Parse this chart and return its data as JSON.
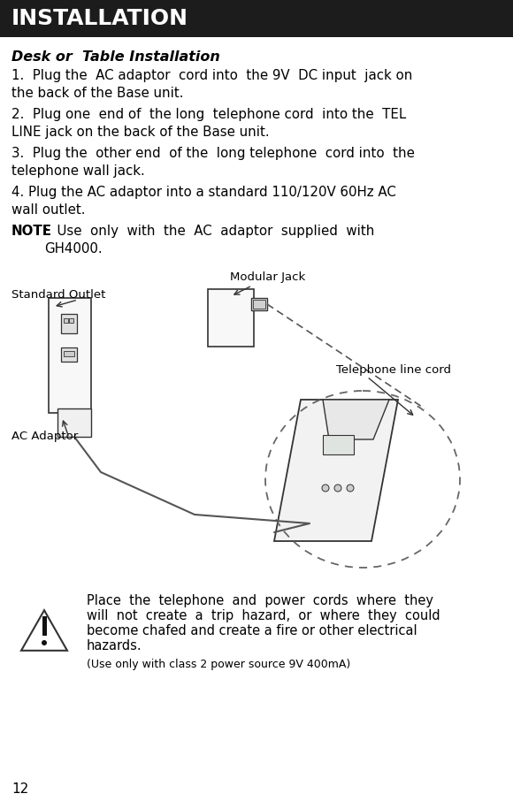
{
  "title": "INSTALLATION",
  "title_bg": "#1c1c1c",
  "title_color": "#ffffff",
  "subtitle": "Desk or  Table Installation",
  "para1": "1.  Plug the  AC adaptor  cord into  the 9V  DC input  jack on\nthe back of the Base unit.",
  "para2": "2.  Plug one  end of  the long  telephone cord  into the  TEL\nLINE jack on the back of the Base unit.",
  "para3": "3.  Plug the  other end  of the  long telephone  cord into  the\ntelephone wall jack.",
  "para4": "4. Plug the AC adaptor into a standard 110/120V 60Hz AC\nwall outlet.",
  "note_rest": ":  Use  only  with  the  AC  adaptor  supplied  with\nGH4000.",
  "caution_line1": "Place  the  telephone  and  power  cords  where  they",
  "caution_line2": "will  not  create  a  trip  hazard,  or  where  they  could",
  "caution_line3": "become chafed and create a fire or other electrical",
  "caution_line4": "hazards.",
  "caution_small": "(Use only with class 2 power source 9V 400mA)",
  "page_num": "12",
  "label_standard_outlet": "Standard Outlet",
  "label_modular_jack": "Modular Jack",
  "label_telephone_cord": "Telephone line cord",
  "label_ac_adaptor": "AC Adaptor",
  "bg_color": "#ffffff",
  "text_color": "#000000",
  "line_color": "#333333"
}
